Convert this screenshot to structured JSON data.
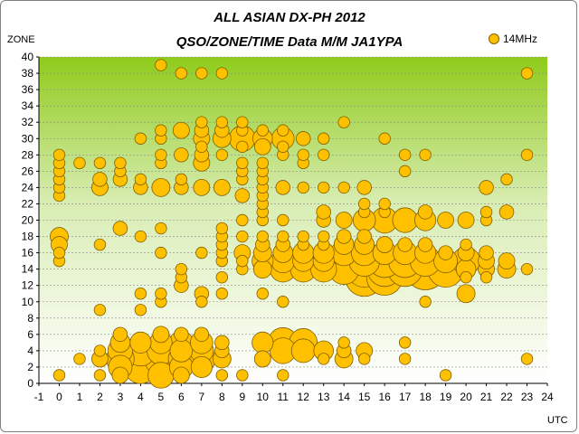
{
  "chart_data": {
    "type": "scatter",
    "title": "ALL ASIAN DX-PH 2012",
    "subtitle": "QSO/ZONE/TIME Data M/M JA1YPA",
    "xlabel": "UTC",
    "ylabel": "ZONE",
    "xlim": [
      -1,
      24
    ],
    "ylim": [
      0,
      40
    ],
    "xticks": [
      -1,
      0,
      1,
      2,
      3,
      4,
      5,
      6,
      7,
      8,
      9,
      10,
      11,
      12,
      13,
      14,
      15,
      16,
      17,
      18,
      19,
      20,
      21,
      22,
      23,
      24
    ],
    "yticks": [
      0,
      2,
      4,
      6,
      8,
      10,
      12,
      14,
      16,
      18,
      20,
      22,
      24,
      26,
      28,
      30,
      32,
      34,
      36,
      38,
      40
    ],
    "grid": "horizontal",
    "legend": "top-right",
    "series": [
      {
        "name": "14MHz",
        "color": "#FFC000",
        "points": [
          [
            0,
            1,
            1
          ],
          [
            0,
            15,
            1
          ],
          [
            0,
            16,
            1
          ],
          [
            0,
            17,
            3
          ],
          [
            0,
            18,
            4
          ],
          [
            0,
            23,
            1
          ],
          [
            0,
            24,
            1
          ],
          [
            0,
            25,
            1
          ],
          [
            0,
            26,
            1
          ],
          [
            0,
            27,
            1
          ],
          [
            0,
            28,
            1
          ],
          [
            1,
            3,
            1
          ],
          [
            1,
            27,
            1
          ],
          [
            2,
            1,
            1
          ],
          [
            2,
            3,
            3
          ],
          [
            2,
            4,
            1
          ],
          [
            2,
            9,
            1
          ],
          [
            2,
            17,
            1
          ],
          [
            2,
            24,
            3
          ],
          [
            2,
            25,
            2
          ],
          [
            2,
            27,
            1
          ],
          [
            3,
            1,
            3
          ],
          [
            3,
            2,
            8
          ],
          [
            3,
            3,
            12
          ],
          [
            3,
            4,
            9
          ],
          [
            3,
            5,
            5
          ],
          [
            3,
            6,
            2
          ],
          [
            3,
            19,
            2
          ],
          [
            3,
            25,
            2
          ],
          [
            3,
            26,
            1
          ],
          [
            3,
            27,
            1
          ],
          [
            4,
            2,
            18
          ],
          [
            4,
            3,
            25
          ],
          [
            4,
            4,
            15
          ],
          [
            4,
            5,
            6
          ],
          [
            4,
            9,
            1
          ],
          [
            4,
            11,
            1
          ],
          [
            4,
            18,
            1
          ],
          [
            4,
            24,
            2
          ],
          [
            4,
            25,
            1
          ],
          [
            4,
            30,
            1
          ],
          [
            5,
            1,
            10
          ],
          [
            5,
            2,
            20
          ],
          [
            5,
            3,
            18
          ],
          [
            5,
            4,
            12
          ],
          [
            5,
            5,
            7
          ],
          [
            5,
            6,
            3
          ],
          [
            5,
            10,
            1
          ],
          [
            5,
            11,
            1
          ],
          [
            5,
            16,
            1
          ],
          [
            5,
            19,
            1
          ],
          [
            5,
            24,
            4
          ],
          [
            5,
            27,
            1
          ],
          [
            5,
            28,
            1
          ],
          [
            5,
            30,
            1
          ],
          [
            5,
            31,
            1
          ],
          [
            5,
            39,
            1
          ],
          [
            6,
            1,
            3
          ],
          [
            6,
            2,
            8
          ],
          [
            6,
            3,
            10
          ],
          [
            6,
            4,
            7
          ],
          [
            6,
            5,
            8
          ],
          [
            6,
            6,
            2
          ],
          [
            6,
            12,
            2
          ],
          [
            6,
            13,
            1
          ],
          [
            6,
            14,
            1
          ],
          [
            6,
            24,
            2
          ],
          [
            6,
            25,
            1
          ],
          [
            6,
            28,
            2
          ],
          [
            6,
            31,
            3
          ],
          [
            6,
            38,
            1
          ],
          [
            7,
            2,
            6
          ],
          [
            7,
            3,
            12
          ],
          [
            7,
            4,
            8
          ],
          [
            7,
            5,
            7
          ],
          [
            7,
            6,
            2
          ],
          [
            7,
            10,
            1
          ],
          [
            7,
            11,
            2
          ],
          [
            7,
            16,
            1
          ],
          [
            7,
            24,
            3
          ],
          [
            7,
            27,
            3
          ],
          [
            7,
            28,
            2
          ],
          [
            7,
            29,
            1
          ],
          [
            7,
            30,
            3
          ],
          [
            7,
            31,
            2
          ],
          [
            7,
            32,
            1
          ],
          [
            7,
            38,
            1
          ],
          [
            8,
            1,
            1
          ],
          [
            8,
            3,
            4
          ],
          [
            8,
            4,
            2
          ],
          [
            8,
            5,
            2
          ],
          [
            8,
            11,
            1
          ],
          [
            8,
            13,
            1
          ],
          [
            8,
            15,
            1
          ],
          [
            8,
            16,
            1
          ],
          [
            8,
            17,
            1
          ],
          [
            8,
            18,
            1
          ],
          [
            8,
            19,
            1
          ],
          [
            8,
            24,
            3
          ],
          [
            8,
            28,
            1
          ],
          [
            8,
            30,
            4
          ],
          [
            8,
            31,
            2
          ],
          [
            8,
            32,
            1
          ],
          [
            8,
            38,
            1
          ],
          [
            9,
            1,
            1
          ],
          [
            9,
            14,
            1
          ],
          [
            9,
            15,
            1
          ],
          [
            9,
            16,
            3
          ],
          [
            9,
            18,
            1
          ],
          [
            9,
            20,
            1
          ],
          [
            9,
            23,
            2
          ],
          [
            9,
            25,
            1
          ],
          [
            9,
            26,
            1
          ],
          [
            9,
            27,
            1
          ],
          [
            9,
            29,
            1
          ],
          [
            9,
            30,
            10
          ],
          [
            9,
            31,
            1
          ],
          [
            9,
            32,
            1
          ],
          [
            10,
            3,
            3
          ],
          [
            10,
            5,
            6
          ],
          [
            10,
            11,
            1
          ],
          [
            10,
            14,
            4
          ],
          [
            10,
            15,
            6
          ],
          [
            10,
            16,
            4
          ],
          [
            10,
            17,
            2
          ],
          [
            10,
            18,
            1
          ],
          [
            10,
            20,
            1
          ],
          [
            10,
            21,
            1
          ],
          [
            10,
            22,
            1
          ],
          [
            10,
            23,
            1
          ],
          [
            10,
            24,
            1
          ],
          [
            10,
            25,
            1
          ],
          [
            10,
            26,
            1
          ],
          [
            10,
            27,
            1
          ],
          [
            10,
            29,
            3
          ],
          [
            10,
            30,
            5
          ],
          [
            10,
            31,
            1
          ],
          [
            11,
            1,
            1
          ],
          [
            11,
            4,
            10
          ],
          [
            11,
            5,
            14
          ],
          [
            11,
            10,
            1
          ],
          [
            11,
            14,
            10
          ],
          [
            11,
            15,
            8
          ],
          [
            11,
            16,
            5
          ],
          [
            11,
            17,
            2
          ],
          [
            11,
            18,
            1
          ],
          [
            11,
            20,
            1
          ],
          [
            11,
            24,
            2
          ],
          [
            11,
            28,
            1
          ],
          [
            11,
            29,
            1
          ],
          [
            11,
            30,
            7
          ],
          [
            11,
            31,
            1
          ],
          [
            12,
            4,
            8
          ],
          [
            12,
            5,
            12
          ],
          [
            12,
            14,
            10
          ],
          [
            12,
            15,
            6
          ],
          [
            12,
            16,
            6
          ],
          [
            12,
            17,
            1
          ],
          [
            12,
            18,
            1
          ],
          [
            12,
            24,
            1
          ],
          [
            12,
            27,
            1
          ],
          [
            12,
            28,
            1
          ],
          [
            12,
            30,
            2
          ],
          [
            13,
            3,
            1
          ],
          [
            13,
            4,
            5
          ],
          [
            13,
            14,
            10
          ],
          [
            13,
            15,
            6
          ],
          [
            13,
            16,
            6
          ],
          [
            13,
            17,
            1
          ],
          [
            13,
            18,
            1
          ],
          [
            13,
            20,
            2
          ],
          [
            13,
            21,
            2
          ],
          [
            13,
            24,
            1
          ],
          [
            13,
            28,
            1
          ],
          [
            13,
            30,
            1
          ],
          [
            14,
            3,
            4
          ],
          [
            14,
            4,
            2
          ],
          [
            14,
            5,
            1
          ],
          [
            14,
            14,
            15
          ],
          [
            14,
            15,
            20
          ],
          [
            14,
            16,
            10
          ],
          [
            14,
            17,
            5
          ],
          [
            14,
            18,
            2
          ],
          [
            14,
            20,
            3
          ],
          [
            14,
            24,
            1
          ],
          [
            14,
            32,
            1
          ],
          [
            15,
            3,
            1
          ],
          [
            15,
            4,
            3
          ],
          [
            15,
            13,
            25
          ],
          [
            15,
            14,
            22
          ],
          [
            15,
            15,
            15
          ],
          [
            15,
            16,
            10
          ],
          [
            15,
            17,
            5
          ],
          [
            15,
            18,
            2
          ],
          [
            15,
            20,
            7
          ],
          [
            15,
            21,
            1
          ],
          [
            15,
            22,
            1
          ],
          [
            15,
            24,
            2
          ],
          [
            16,
            13,
            22
          ],
          [
            16,
            14,
            20
          ],
          [
            16,
            15,
            18
          ],
          [
            16,
            16,
            8
          ],
          [
            16,
            17,
            3
          ],
          [
            16,
            20,
            10
          ],
          [
            16,
            21,
            1
          ],
          [
            16,
            22,
            1
          ],
          [
            16,
            30,
            1
          ],
          [
            17,
            3,
            1
          ],
          [
            17,
            5,
            1
          ],
          [
            17,
            14,
            20
          ],
          [
            17,
            15,
            18
          ],
          [
            17,
            16,
            8
          ],
          [
            17,
            17,
            2
          ],
          [
            17,
            20,
            9
          ],
          [
            17,
            26,
            1
          ],
          [
            17,
            28,
            1
          ],
          [
            18,
            10,
            1
          ],
          [
            18,
            14,
            30
          ],
          [
            18,
            15,
            15
          ],
          [
            18,
            16,
            6
          ],
          [
            18,
            17,
            2
          ],
          [
            18,
            20,
            6
          ],
          [
            18,
            21,
            2
          ],
          [
            18,
            28,
            1
          ],
          [
            19,
            1,
            1
          ],
          [
            19,
            14,
            22
          ],
          [
            19,
            15,
            8
          ],
          [
            19,
            16,
            2
          ],
          [
            19,
            20,
            3
          ],
          [
            20,
            11,
            4
          ],
          [
            20,
            13,
            1
          ],
          [
            20,
            14,
            5
          ],
          [
            20,
            15,
            12
          ],
          [
            20,
            16,
            3
          ],
          [
            20,
            17,
            1
          ],
          [
            20,
            20,
            3
          ],
          [
            21,
            13,
            1
          ],
          [
            21,
            14,
            3
          ],
          [
            21,
            15,
            3
          ],
          [
            21,
            16,
            2
          ],
          [
            21,
            20,
            1
          ],
          [
            21,
            21,
            1
          ],
          [
            21,
            24,
            2
          ],
          [
            22,
            14,
            4
          ],
          [
            22,
            15,
            3
          ],
          [
            22,
            21,
            2
          ],
          [
            22,
            25,
            1
          ],
          [
            23,
            3,
            1
          ],
          [
            23,
            14,
            1
          ],
          [
            23,
            28,
            1
          ],
          [
            23,
            38,
            1
          ]
        ]
      }
    ]
  }
}
